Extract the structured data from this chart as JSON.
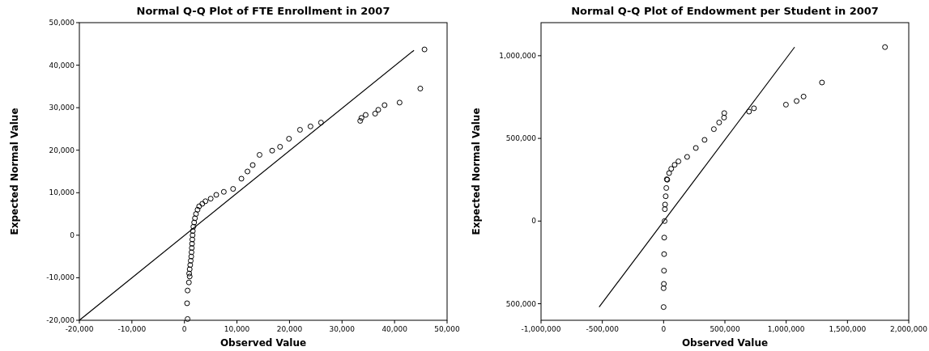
{
  "chart_data": [
    {
      "type": "scatter",
      "title": "Normal Q-Q Plot of FTE Enrollment in 2007",
      "xlabel": "Observed Value",
      "ylabel": "Expected Normal Value",
      "marker": "circle",
      "grid": false,
      "xlim": [
        -20000,
        50000
      ],
      "ylim": [
        -20000,
        50000
      ],
      "xticks": [
        {
          "value": -20000,
          "label": "-20,000"
        },
        {
          "value": -10000,
          "label": "-10,000"
        },
        {
          "value": 0,
          "label": "0"
        },
        {
          "value": 10000,
          "label": "10,000"
        },
        {
          "value": 20000,
          "label": "20,000"
        },
        {
          "value": 30000,
          "label": "30,000"
        },
        {
          "value": 40000,
          "label": "40,000"
        },
        {
          "value": 50000,
          "label": "50,000"
        }
      ],
      "yticks": [
        {
          "value": -20000,
          "label": "-20,000"
        },
        {
          "value": -10000,
          "label": "-10,000"
        },
        {
          "value": 0,
          "label": "0"
        },
        {
          "value": 10000,
          "label": "10,000"
        },
        {
          "value": 20000,
          "label": "20,000"
        },
        {
          "value": 30000,
          "label": "30,000"
        },
        {
          "value": 40000,
          "label": "40,000"
        },
        {
          "value": 50000,
          "label": "50,000"
        }
      ],
      "series": [
        {
          "color": "#000000",
          "x": [
            600,
            500,
            600,
            850,
            1000,
            900,
            1000,
            1100,
            1200,
            1300,
            1350,
            1400,
            1450,
            1500,
            1550,
            1600,
            1700,
            1850,
            2000,
            2200,
            2500,
            2800,
            3400,
            4000,
            5000,
            6060,
            7500,
            9260,
            10850,
            12000,
            13000,
            14300,
            16700,
            18200,
            19900,
            22000,
            24000,
            26000,
            33460,
            33700,
            34500,
            36300,
            36900,
            38100,
            40960,
            44900,
            45700
          ],
          "values": [
            -19700,
            -16000,
            -13000,
            -11100,
            -9700,
            -9000,
            -8000,
            -7000,
            -6000,
            -5000,
            -4000,
            -3000,
            -2000,
            -1000,
            0,
            1000,
            2000,
            3000,
            4000,
            5000,
            6000,
            6800,
            7400,
            8000,
            8600,
            9500,
            10200,
            10900,
            13300,
            15000,
            16500,
            18900,
            19900,
            20800,
            22700,
            24800,
            25600,
            26500,
            26900,
            27600,
            28300,
            28600,
            29500,
            30600,
            31200,
            34500,
            43700
          ]
        },
        {
          "type": "line",
          "marker": "none",
          "color": "#000000",
          "x": [
            -20000,
            43700
          ],
          "values": [
            -20000,
            43500
          ]
        }
      ]
    },
    {
      "type": "scatter",
      "title": "Normal Q-Q Plot of Endowment per Student in 2007",
      "xlabel": "Observed Value",
      "ylabel": "Expected Normal Value",
      "marker": "circle",
      "grid": false,
      "xlim": [
        -1000000,
        2000000
      ],
      "ylim": [
        -600000,
        1200000
      ],
      "xticks": [
        {
          "value": -1000000,
          "label": "-1,000,000"
        },
        {
          "value": -500000,
          "label": "-500,000"
        },
        {
          "value": 0,
          "label": "0"
        },
        {
          "value": 500000,
          "label": "500,000"
        },
        {
          "value": 1000000,
          "label": "1,000,000"
        },
        {
          "value": 1500000,
          "label": "1,500,000"
        },
        {
          "value": 2000000,
          "label": "2,000,000"
        }
      ],
      "yticks": [
        {
          "value": -500000,
          "label": "500,000"
        },
        {
          "value": 0,
          "label": "0"
        },
        {
          "value": 500000,
          "label": "500,000"
        },
        {
          "value": 1000000,
          "label": "1,000,000"
        }
      ],
      "series": [
        {
          "color": "#000000",
          "x": [
            0,
            0,
            2000,
            3000,
            4000,
            5000,
            8000,
            10000,
            12000,
            17000,
            22000,
            26000,
            30000,
            45000,
            62000,
            90000,
            121000,
            192000,
            263000,
            334000,
            410000,
            453000,
            493000,
            495000,
            697000,
            737000,
            998000,
            1085000,
            1142000,
            1292000,
            1806000
          ],
          "values": [
            -520000,
            -406000,
            -380000,
            -300000,
            -200000,
            -100000,
            0,
            72000,
            100000,
            150000,
            200000,
            253000,
            250000,
            290000,
            316000,
            340000,
            361000,
            388000,
            442000,
            491000,
            556000,
            596000,
            626000,
            653000,
            662000,
            682000,
            704000,
            726000,
            753000,
            838000,
            1052000
          ]
        },
        {
          "type": "line",
          "marker": "none",
          "color": "#000000",
          "x": [
            -526000,
            1069000
          ],
          "values": [
            -520000,
            1052000
          ]
        }
      ]
    }
  ]
}
